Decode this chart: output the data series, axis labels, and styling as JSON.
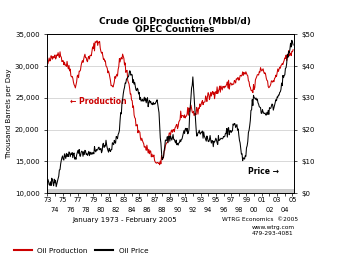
{
  "title_line1": "Crude Oil Production (Mbbl/d)",
  "title_line2": "OPEC Countries",
  "xlabel": "January 1973 - February 2005",
  "ylabel_left": "Thousand Barrels per Day",
  "left_ylim": [
    10000,
    35000
  ],
  "right_ylim": [
    0,
    50
  ],
  "left_yticks": [
    10000,
    15000,
    20000,
    25000,
    30000,
    35000
  ],
  "left_yticklabels": [
    "10,000",
    "15,000",
    "20,000",
    "25,000",
    "30,000",
    "35,000"
  ],
  "right_yticks": [
    0,
    10,
    20,
    30,
    40,
    50
  ],
  "right_yticklabels": [
    "$0",
    "$10",
    "$20",
    "$30",
    "$40",
    "$50"
  ],
  "prod_color": "#cc0000",
  "price_color": "#000000",
  "bg_color": "#ffffff",
  "grid_color": "#bbbbbb",
  "annotation_prod": "← Production",
  "annotation_price": "Price →",
  "legend_prod": "Oil Production",
  "legend_price": "Oil Price",
  "watermark1": "WTRG Economics  ©2005",
  "watermark2": "www.wtrg.com",
  "watermark3": "479-293-4081"
}
